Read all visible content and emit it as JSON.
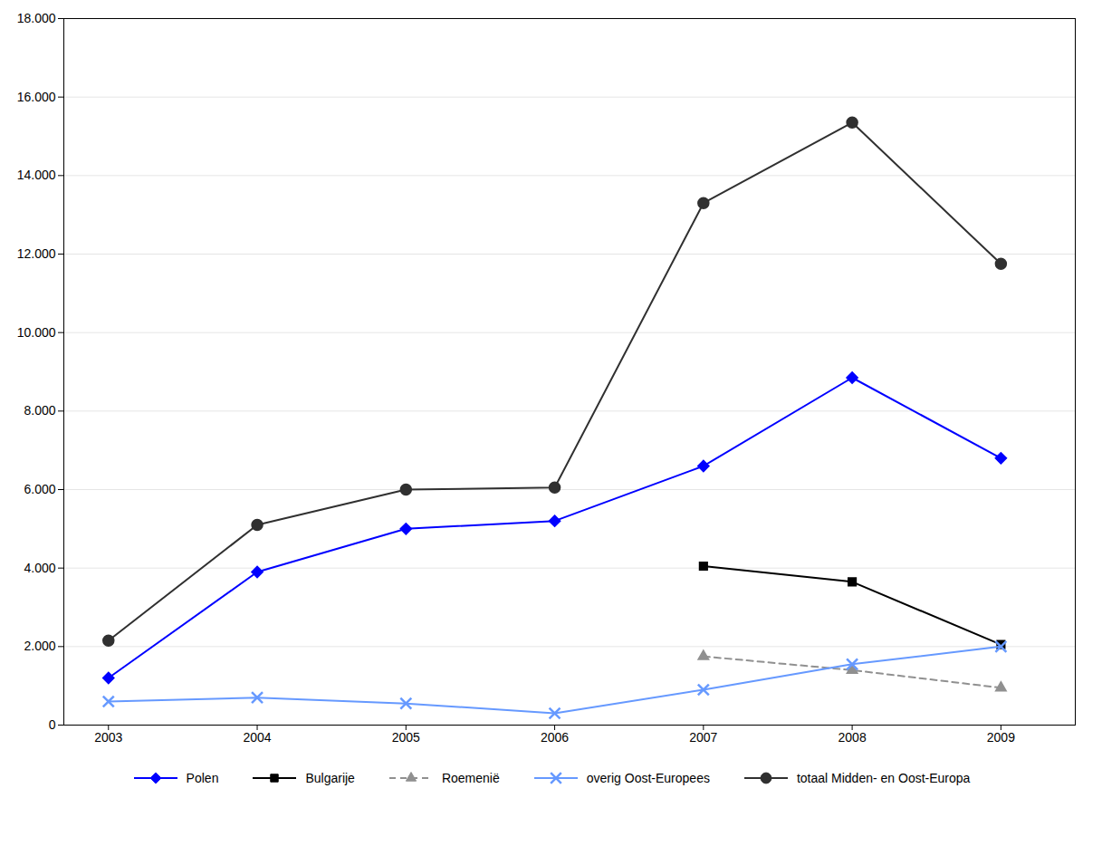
{
  "chart_data": {
    "type": "line",
    "x": [
      2003,
      2004,
      2005,
      2006,
      2007,
      2008,
      2009
    ],
    "series": [
      {
        "name": "Polen",
        "color": "#0000FF",
        "marker": "diamond",
        "line_style": "solid",
        "values": [
          1200,
          3900,
          5000,
          5200,
          6600,
          8850,
          6800
        ]
      },
      {
        "name": "Bulgarije",
        "color": "#000000",
        "marker": "square",
        "line_style": "solid",
        "values": [
          null,
          null,
          null,
          null,
          4050,
          3650,
          2050
        ]
      },
      {
        "name": "Roemenië",
        "color": "#909090",
        "marker": "triangle",
        "line_style": "dashed",
        "values": [
          null,
          null,
          null,
          null,
          1750,
          1400,
          950
        ]
      },
      {
        "name": "overig Oost-Europees",
        "color": "#6699FF",
        "marker": "x",
        "line_style": "solid",
        "values": [
          600,
          700,
          550,
          300,
          900,
          1550,
          2000
        ]
      },
      {
        "name": "totaal Midden- en Oost-Europa",
        "color": "#303030",
        "marker": "circle",
        "line_style": "solid",
        "values": [
          2150,
          5100,
          6000,
          6050,
          13300,
          15350,
          11750
        ]
      }
    ],
    "xlim": [
      2002.7,
      2009.5
    ],
    "xticks": [
      2003,
      2004,
      2005,
      2006,
      2007,
      2008,
      2009
    ],
    "ylim": [
      0,
      18000
    ],
    "yticks": [
      0,
      {
        "value": 2000,
        "label": "2.000"
      },
      {
        "value": 4000,
        "label": "4.000"
      },
      {
        "value": 6000,
        "label": "6.000"
      },
      {
        "value": 8000,
        "label": "8.000"
      },
      {
        "value": 10000,
        "label": "10.000"
      },
      {
        "value": 12000,
        "label": "12.000"
      },
      {
        "value": 14000,
        "label": "14.000"
      },
      {
        "value": 16000,
        "label": "16.000"
      },
      {
        "value": 18000,
        "label": "18.000"
      }
    ],
    "grid": true,
    "legend": "bottom"
  }
}
